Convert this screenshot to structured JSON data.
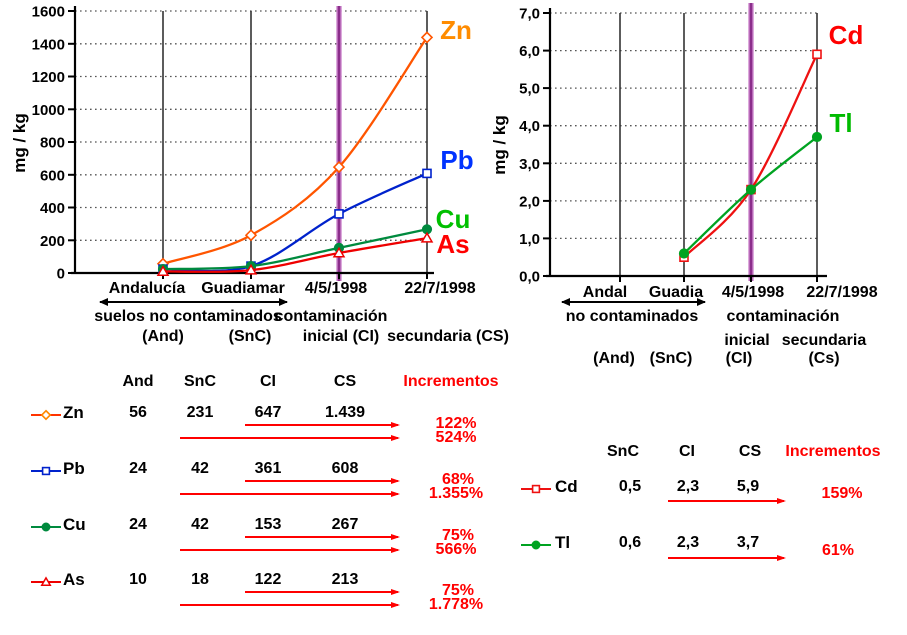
{
  "colors": {
    "accent_red": "#ff0000",
    "purple_core": "#8b2e8b",
    "purple_halo": "#cc85cc",
    "axis_black": "#000000",
    "grid_gray": "#555555"
  },
  "chart_data": [
    {
      "type": "line",
      "ylabel": "mg / kg",
      "ylim": [
        0,
        1600
      ],
      "ytick_step": 200,
      "ytick_labels": [
        "1600",
        "1400",
        "1200",
        "1000",
        "800",
        "600",
        "400",
        "200",
        "0"
      ],
      "categories": [
        "Andalucía",
        "Guadiamar",
        "4/5/1998",
        "22/7/1998"
      ],
      "highlight_index": 2,
      "grid": "dotted-horizontal",
      "legend_position": "right-of-line-ends",
      "series": [
        {
          "name": "Zn",
          "marker": "open-diamond",
          "line_color": "#ff5500",
          "label_color": "#ff8c00",
          "values": [
            56,
            231,
            647,
            1439
          ]
        },
        {
          "name": "Pb",
          "marker": "open-square",
          "line_color": "#0022cc",
          "label_color": "#0033ff",
          "values": [
            24,
            42,
            361,
            608
          ]
        },
        {
          "name": "Cu",
          "marker": "filled-circle",
          "line_color": "#008a3e",
          "label_color": "#00c000",
          "values": [
            24,
            42,
            153,
            267
          ]
        },
        {
          "name": "As",
          "marker": "open-triangle",
          "line_color": "#ee0000",
          "label_color": "#ff0000",
          "values": [
            10,
            18,
            122,
            213
          ]
        }
      ],
      "annotations": {
        "group_left": "suelos  no contaminados",
        "group_right": "contaminación",
        "sub_labels": [
          "(And)",
          "(SnC)",
          "inicial (CI)",
          "secundaria (CS)"
        ]
      }
    },
    {
      "type": "line",
      "ylabel": "mg / kg",
      "ylim": [
        0,
        7
      ],
      "ytick_step": 1,
      "ytick_labels": [
        "7,0",
        "6,0",
        "5,0",
        "4,0",
        "3,0",
        "2,0",
        "1,0",
        "0,0"
      ],
      "categories": [
        "Andal",
        "Guadia",
        "4/5/1998",
        "22/7/1998"
      ],
      "highlight_index": 2,
      "grid": "dotted-horizontal",
      "legend_position": "right-of-line-ends",
      "series": [
        {
          "name": "Cd",
          "marker": "open-square",
          "line_color": "#ee1111",
          "label_color": "#ff0000",
          "values": [
            null,
            0.5,
            2.3,
            5.9
          ]
        },
        {
          "name": "Tl",
          "marker": "filled-circle",
          "line_color": "#00a321",
          "label_color": "#00bb00",
          "values": [
            null,
            0.6,
            2.3,
            3.7
          ]
        }
      ],
      "annotations": {
        "group_left": "no contaminados",
        "group_right": "contaminación",
        "sub_row1": [
          "inicial",
          "secundaria"
        ],
        "sub_labels": [
          "(And)",
          "(SnC)",
          "(CI)",
          "(Cs)"
        ]
      }
    }
  ],
  "tables": {
    "left": {
      "headers": [
        "And",
        "SnC",
        "CI",
        "CS"
      ],
      "increments_header": "Incrementos",
      "rows": [
        {
          "name": "Zn",
          "marker": "open-diamond",
          "color": "#ff8800",
          "line_color": "#ff3300",
          "values": [
            "56",
            "231",
            "647",
            "1.439"
          ],
          "inc1": "122%",
          "inc2": "524%"
        },
        {
          "name": "Pb",
          "marker": "open-square",
          "color": "#0022cc",
          "line_color": "#0022cc",
          "values": [
            "24",
            "42",
            "361",
            "608"
          ],
          "inc1": "68%",
          "inc2": "1.355%"
        },
        {
          "name": "Cu",
          "marker": "filled-circle",
          "color": "#008a3e",
          "line_color": "#008a3e",
          "values": [
            "24",
            "42",
            "153",
            "267"
          ],
          "inc1": "75%",
          "inc2": "566%"
        },
        {
          "name": "As",
          "marker": "open-triangle",
          "color": "#ee0000",
          "line_color": "#ee0000",
          "values": [
            "10",
            "18",
            "122",
            "213"
          ],
          "inc1": "75%",
          "inc2": "1.778%"
        }
      ]
    },
    "right": {
      "headers": [
        "SnC",
        "CI",
        "CS"
      ],
      "increments_header": "Incrementos",
      "rows": [
        {
          "name": "Cd",
          "marker": "open-square",
          "color": "#ee1111",
          "line_color": "#ee1111",
          "values": [
            "0,5",
            "2,3",
            "5,9"
          ],
          "inc1": "159%"
        },
        {
          "name": "Tl",
          "marker": "filled-circle",
          "color": "#00a321",
          "line_color": "#00a321",
          "values": [
            "0,6",
            "2,3",
            "3,7"
          ],
          "inc1": "61%"
        }
      ]
    }
  }
}
